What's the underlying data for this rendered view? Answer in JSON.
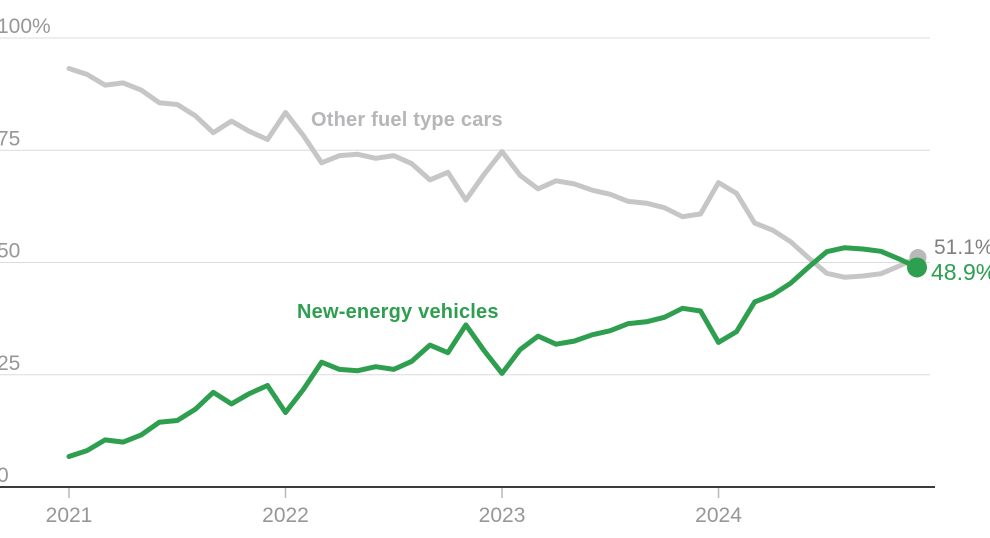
{
  "chart": {
    "series_labels": {
      "other": "Other fuel type cars",
      "nev": "New-energy vehicles"
    },
    "end_labels": {
      "other": "51.1%",
      "nev": "48.9%"
    }
  },
  "chart_data": {
    "type": "line",
    "unit": "percent share",
    "categories": [
      "2021-01",
      "2021-02",
      "2021-03",
      "2021-04",
      "2021-05",
      "2021-06",
      "2021-07",
      "2021-08",
      "2021-09",
      "2021-10",
      "2021-11",
      "2021-12",
      "2022-01",
      "2022-02",
      "2022-03",
      "2022-04",
      "2022-05",
      "2022-06",
      "2022-07",
      "2022-08",
      "2022-09",
      "2022-10",
      "2022-11",
      "2022-12",
      "2023-01",
      "2023-02",
      "2023-03",
      "2023-04",
      "2023-05",
      "2023-06",
      "2023-07",
      "2023-08",
      "2023-09",
      "2023-10",
      "2023-11",
      "2023-12",
      "2024-01",
      "2024-02",
      "2024-03",
      "2024-04",
      "2024-05",
      "2024-06",
      "2024-07",
      "2024-08",
      "2024-09",
      "2024-10",
      "2024-11",
      "2024-12"
    ],
    "series": [
      {
        "name": "Other fuel type cars",
        "color": "#c6c6c7",
        "end_value_label": "51.1%",
        "values": [
          93.2,
          91.9,
          89.5,
          90.0,
          88.4,
          85.6,
          85.2,
          82.7,
          78.9,
          81.5,
          79.2,
          77.4,
          83.4,
          78.2,
          72.2,
          73.8,
          74.1,
          73.2,
          73.8,
          72.0,
          68.4,
          70.1,
          63.9,
          69.6,
          74.7,
          69.4,
          66.4,
          68.2,
          67.5,
          66.1,
          65.2,
          63.6,
          63.2,
          62.2,
          60.2,
          60.8,
          67.8,
          65.4,
          58.8,
          57.2,
          54.6,
          51.0,
          47.6,
          46.7,
          47.0,
          47.5,
          49.2,
          51.1
        ]
      },
      {
        "name": "New-energy vehicles",
        "color": "#2e9e4f",
        "end_value_label": "48.9%",
        "values": [
          6.8,
          8.1,
          10.5,
          10.0,
          11.6,
          14.4,
          14.8,
          17.3,
          21.1,
          18.5,
          20.8,
          22.6,
          16.6,
          21.8,
          27.8,
          26.2,
          25.9,
          26.8,
          26.2,
          28.0,
          31.6,
          29.9,
          36.1,
          30.4,
          25.3,
          30.6,
          33.6,
          31.8,
          32.5,
          33.9,
          34.8,
          36.4,
          36.8,
          37.8,
          39.8,
          39.2,
          32.2,
          34.6,
          41.2,
          42.8,
          45.4,
          49.0,
          52.4,
          53.3,
          53.0,
          52.5,
          50.8,
          48.9
        ]
      }
    ],
    "ylim": [
      0,
      100
    ],
    "yticks": [
      {
        "value": 0,
        "label": "0"
      },
      {
        "value": 25,
        "label": "25"
      },
      {
        "value": 50,
        "label": "50"
      },
      {
        "value": 75,
        "label": "75"
      },
      {
        "value": 100,
        "label": "100%"
      }
    ],
    "xticks": [
      {
        "index": 0,
        "label": "2021"
      },
      {
        "index": 12,
        "label": "2022"
      },
      {
        "index": 24,
        "label": "2023"
      },
      {
        "index": 36,
        "label": "2024"
      }
    ],
    "grid": true,
    "legend_position": "inline-labels",
    "colors": {
      "gridline": "#dcdcdc",
      "axis": "#3b3b3b",
      "tick": "#b9b9b9",
      "tick_label": "#97979a"
    }
  }
}
